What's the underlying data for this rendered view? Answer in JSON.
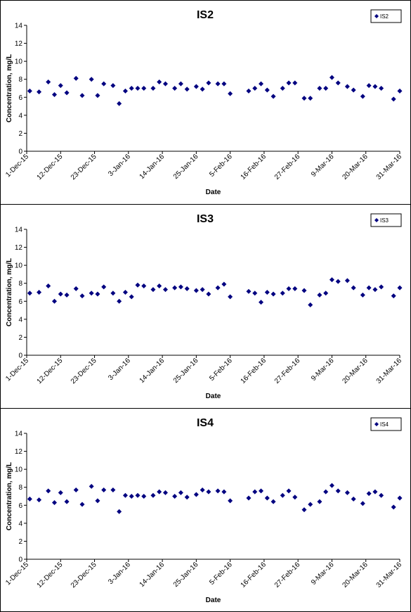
{
  "chart_data": [
    {
      "type": "scatter",
      "title": "IS2",
      "x_label": "Date",
      "y_label": "Concentration, mg/L",
      "x": [
        "2015-12-02",
        "2015-12-05",
        "2015-12-08",
        "2015-12-10",
        "2015-12-12",
        "2015-12-14",
        "2015-12-17",
        "2015-12-19",
        "2015-12-22",
        "2015-12-24",
        "2015-12-26",
        "2015-12-29",
        "2015-12-31",
        "2016-01-02",
        "2016-01-04",
        "2016-01-06",
        "2016-01-08",
        "2016-01-11",
        "2016-01-13",
        "2016-01-15",
        "2016-01-18",
        "2016-01-20",
        "2016-01-22",
        "2016-01-25",
        "2016-01-27",
        "2016-01-29",
        "2016-02-01",
        "2016-02-03",
        "2016-02-05",
        "2016-02-11",
        "2016-02-13",
        "2016-02-15",
        "2016-02-17",
        "2016-02-19",
        "2016-02-22",
        "2016-02-24",
        "2016-02-26",
        "2016-02-29",
        "2016-03-02",
        "2016-03-05",
        "2016-03-07",
        "2016-03-09",
        "2016-03-11",
        "2016-03-14",
        "2016-03-16",
        "2016-03-19",
        "2016-03-21",
        "2016-03-23",
        "2016-03-25",
        "2016-03-29",
        "2016-03-31"
      ],
      "series": [
        {
          "name": "IS2",
          "color": "#000080",
          "values": [
            6.7,
            6.6,
            7.7,
            6.3,
            7.3,
            6.5,
            8.1,
            6.2,
            8.0,
            6.2,
            7.5,
            7.3,
            5.3,
            6.7,
            7.0,
            7.0,
            7.0,
            7.0,
            7.7,
            7.5,
            7.0,
            7.5,
            6.9,
            7.2,
            6.9,
            7.6,
            7.5,
            7.5,
            6.4,
            6.7,
            7.0,
            7.5,
            6.8,
            6.1,
            7.0,
            7.6,
            7.6,
            5.9,
            5.9,
            7.0,
            7.0,
            8.2,
            7.6,
            7.2,
            6.8,
            6.1,
            7.3,
            7.2,
            7.0,
            5.8,
            6.7
          ]
        }
      ],
      "xlim": [
        "2015-12-01",
        "2016-03-31"
      ],
      "xticks": [
        {
          "value": "2015-12-01",
          "label": "1-Dec-15"
        },
        {
          "value": "2015-12-12",
          "label": "12-Dec-15"
        },
        {
          "value": "2015-12-23",
          "label": "23-Dec-15"
        },
        {
          "value": "2016-01-03",
          "label": "3-Jan-16"
        },
        {
          "value": "2016-01-14",
          "label": "14-Jan-16"
        },
        {
          "value": "2016-01-25",
          "label": "25-Jan-16"
        },
        {
          "value": "2016-02-05",
          "label": "5-Feb-16"
        },
        {
          "value": "2016-02-16",
          "label": "16-Feb-16"
        },
        {
          "value": "2016-02-27",
          "label": "27-Feb-16"
        },
        {
          "value": "2016-03-09",
          "label": "9-Mar-16"
        },
        {
          "value": "2016-03-20",
          "label": "20-Mar-16"
        },
        {
          "value": "2016-03-31",
          "label": "31-Mar-16"
        }
      ],
      "ylim": [
        0,
        14
      ],
      "yticks": [
        0,
        2,
        4,
        6,
        8,
        10,
        12,
        14
      ],
      "grid": false,
      "legend": "top-right"
    },
    {
      "type": "scatter",
      "title": "IS3",
      "x_label": "Date",
      "y_label": "Concentration, mg/L",
      "x": [
        "2015-12-02",
        "2015-12-05",
        "2015-12-08",
        "2015-12-10",
        "2015-12-12",
        "2015-12-14",
        "2015-12-17",
        "2015-12-19",
        "2015-12-22",
        "2015-12-24",
        "2015-12-26",
        "2015-12-29",
        "2015-12-31",
        "2016-01-02",
        "2016-01-04",
        "2016-01-06",
        "2016-01-08",
        "2016-01-11",
        "2016-01-13",
        "2016-01-15",
        "2016-01-18",
        "2016-01-20",
        "2016-01-22",
        "2016-01-25",
        "2016-01-27",
        "2016-01-29",
        "2016-02-01",
        "2016-02-03",
        "2016-02-05",
        "2016-02-11",
        "2016-02-13",
        "2016-02-15",
        "2016-02-17",
        "2016-02-19",
        "2016-02-22",
        "2016-02-24",
        "2016-02-26",
        "2016-02-29",
        "2016-03-02",
        "2016-03-05",
        "2016-03-07",
        "2016-03-09",
        "2016-03-11",
        "2016-03-14",
        "2016-03-16",
        "2016-03-19",
        "2016-03-21",
        "2016-03-23",
        "2016-03-25",
        "2016-03-29",
        "2016-03-31"
      ],
      "series": [
        {
          "name": "IS3",
          "color": "#000080",
          "values": [
            6.9,
            7.0,
            7.7,
            6.0,
            6.8,
            6.7,
            7.4,
            6.6,
            6.9,
            6.8,
            7.6,
            6.9,
            6.0,
            7.0,
            6.5,
            7.8,
            7.7,
            7.3,
            7.7,
            7.3,
            7.5,
            7.6,
            7.4,
            7.2,
            7.3,
            6.8,
            7.5,
            7.9,
            6.5,
            7.1,
            6.9,
            5.9,
            7.0,
            6.8,
            6.9,
            7.4,
            7.4,
            7.2,
            5.6,
            6.7,
            6.9,
            8.4,
            8.2,
            8.3,
            7.5,
            6.7,
            7.5,
            7.3,
            7.6,
            6.6,
            7.5
          ]
        }
      ],
      "xlim": [
        "2015-12-01",
        "2016-03-31"
      ],
      "xticks": [
        {
          "value": "2015-12-01",
          "label": "1-Dec-15"
        },
        {
          "value": "2015-12-12",
          "label": "12-Dec-15"
        },
        {
          "value": "2015-12-23",
          "label": "23-Dec-15"
        },
        {
          "value": "2016-01-03",
          "label": "3-Jan-16"
        },
        {
          "value": "2016-01-14",
          "label": "14-Jan-16"
        },
        {
          "value": "2016-01-25",
          "label": "25-Jan-16"
        },
        {
          "value": "2016-02-05",
          "label": "5-Feb-16"
        },
        {
          "value": "2016-02-16",
          "label": "16-Feb-16"
        },
        {
          "value": "2016-02-27",
          "label": "27-Feb-16"
        },
        {
          "value": "2016-03-09",
          "label": "9-Mar-16"
        },
        {
          "value": "2016-03-20",
          "label": "20-Mar-16"
        },
        {
          "value": "2016-03-31",
          "label": "31-Mar-16"
        }
      ],
      "ylim": [
        0,
        14
      ],
      "yticks": [
        0,
        2,
        4,
        6,
        8,
        10,
        12,
        14
      ],
      "grid": false,
      "legend": "top-right"
    },
    {
      "type": "scatter",
      "title": "IS4",
      "x_label": "Date",
      "y_label": "Concentration, mg/L",
      "x": [
        "2015-12-02",
        "2015-12-05",
        "2015-12-08",
        "2015-12-10",
        "2015-12-12",
        "2015-12-14",
        "2015-12-17",
        "2015-12-19",
        "2015-12-22",
        "2015-12-24",
        "2015-12-26",
        "2015-12-29",
        "2015-12-31",
        "2016-01-02",
        "2016-01-04",
        "2016-01-06",
        "2016-01-08",
        "2016-01-11",
        "2016-01-13",
        "2016-01-15",
        "2016-01-18",
        "2016-01-20",
        "2016-01-22",
        "2016-01-25",
        "2016-01-27",
        "2016-01-29",
        "2016-02-01",
        "2016-02-03",
        "2016-02-05",
        "2016-02-11",
        "2016-02-13",
        "2016-02-15",
        "2016-02-17",
        "2016-02-19",
        "2016-02-22",
        "2016-02-24",
        "2016-02-26",
        "2016-02-29",
        "2016-03-02",
        "2016-03-05",
        "2016-03-07",
        "2016-03-09",
        "2016-03-11",
        "2016-03-14",
        "2016-03-16",
        "2016-03-19",
        "2016-03-21",
        "2016-03-23",
        "2016-03-25",
        "2016-03-29",
        "2016-03-31"
      ],
      "series": [
        {
          "name": "IS4",
          "color": "#000080",
          "values": [
            6.7,
            6.6,
            7.6,
            6.3,
            7.4,
            6.4,
            7.7,
            6.1,
            8.1,
            6.5,
            7.7,
            7.7,
            5.3,
            7.1,
            7.0,
            7.1,
            7.0,
            7.1,
            7.5,
            7.4,
            7.0,
            7.4,
            6.9,
            7.2,
            7.7,
            7.5,
            7.6,
            7.5,
            6.5,
            6.8,
            7.5,
            7.6,
            6.8,
            6.4,
            7.1,
            7.6,
            6.9,
            5.5,
            6.1,
            6.4,
            7.5,
            8.2,
            7.6,
            7.4,
            6.7,
            6.2,
            7.3,
            7.5,
            7.1,
            5.8,
            6.8
          ]
        }
      ],
      "xlim": [
        "2015-12-01",
        "2016-03-31"
      ],
      "xticks": [
        {
          "value": "2015-12-01",
          "label": "1-Dec-15"
        },
        {
          "value": "2015-12-12",
          "label": "12-Dec-15"
        },
        {
          "value": "2015-12-23",
          "label": "23-Dec-15"
        },
        {
          "value": "2016-01-03",
          "label": "3-Jan-16"
        },
        {
          "value": "2016-01-14",
          "label": "14-Jan-16"
        },
        {
          "value": "2016-01-25",
          "label": "25-Jan-16"
        },
        {
          "value": "2016-02-05",
          "label": "5-Feb-16"
        },
        {
          "value": "2016-02-16",
          "label": "16-Feb-16"
        },
        {
          "value": "2016-02-27",
          "label": "27-Feb-16"
        },
        {
          "value": "2016-03-09",
          "label": "9-Mar-16"
        },
        {
          "value": "2016-03-20",
          "label": "20-Mar-16"
        },
        {
          "value": "2016-03-31",
          "label": "31-Mar-16"
        }
      ],
      "ylim": [
        0,
        14
      ],
      "yticks": [
        0,
        2,
        4,
        6,
        8,
        10,
        12,
        14
      ],
      "grid": false,
      "legend": "top-right"
    }
  ]
}
